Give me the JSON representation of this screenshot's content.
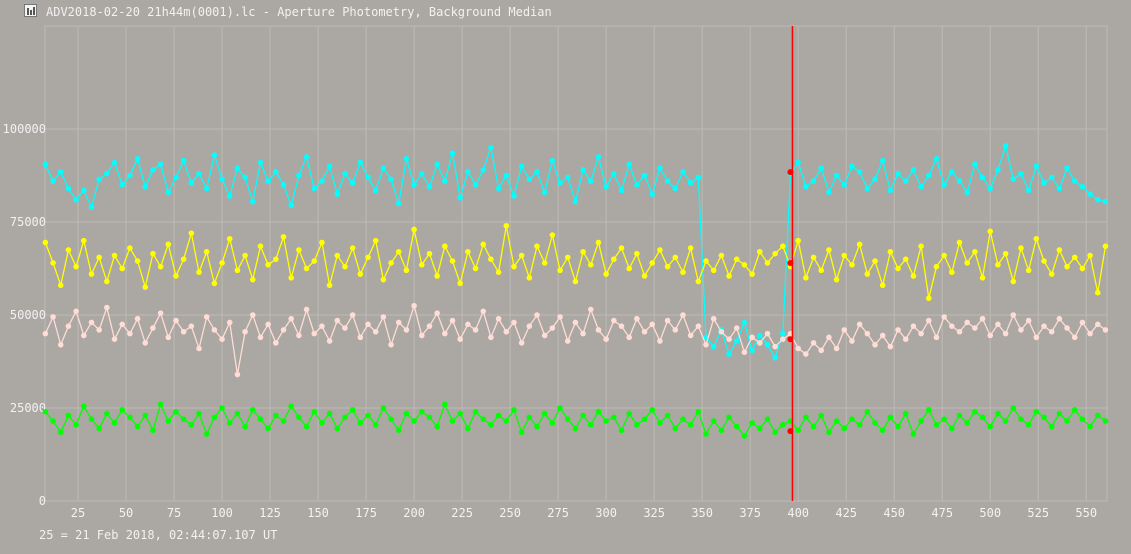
{
  "window": {
    "title": "ADV2018-02-20 21h44m(0001).lc - Aperture Photometry, Background Median",
    "icon": "light-curve-app-icon"
  },
  "footer": {
    "time_label": "25 = 21 Feb 2018, 02:44:07.107 UT"
  },
  "chart_data": {
    "type": "line",
    "title": "",
    "xlabel": "",
    "ylabel": "",
    "xlim": [
      7.8,
      560.8
    ],
    "ylim": [
      0,
      127700
    ],
    "grid": true,
    "x_ticks": [
      25,
      50,
      75,
      100,
      125,
      150,
      175,
      200,
      225,
      250,
      275,
      300,
      325,
      350,
      375,
      400,
      425,
      450,
      475,
      500,
      525,
      550
    ],
    "y_ticks": [
      0,
      25000,
      50000,
      75000,
      100000
    ],
    "x_start": 8,
    "x_step": 4,
    "current_frame": 397,
    "current_frame_color": "#ff0000",
    "series": [
      {
        "color": "#00ffff",
        "current_value": 88400,
        "values": [
          90500,
          86000,
          88500,
          84000,
          81000,
          83500,
          79000,
          86500,
          88000,
          91000,
          85000,
          87500,
          92000,
          84500,
          89000,
          90500,
          83000,
          87000,
          91500,
          85500,
          88000,
          84000,
          93000,
          86500,
          82000,
          89500,
          87000,
          80500,
          91000,
          86000,
          88500,
          85000,
          79500,
          87500,
          92500,
          84000,
          86000,
          90000,
          82500,
          88000,
          85500,
          91000,
          87000,
          83500,
          89500,
          86500,
          80000,
          92000,
          85000,
          88000,
          84500,
          90500,
          86000,
          93500,
          81500,
          88500,
          85000,
          89000,
          95000,
          84000,
          87500,
          82000,
          90000,
          86500,
          88500,
          83000,
          91500,
          85500,
          87000,
          80500,
          89000,
          86000,
          92500,
          84500,
          88000,
          83500,
          90500,
          85000,
          87500,
          82500,
          89500,
          86000,
          84000,
          88500,
          85500,
          87000,
          44000,
          41500,
          46000,
          39500,
          43000,
          48000,
          40500,
          44500,
          42000,
          38500,
          45000,
          88000,
          91000,
          84500,
          86000,
          89500,
          83000,
          87500,
          85000,
          90000,
          88500,
          84000,
          86500,
          91500,
          83500,
          88000,
          86000,
          89000,
          84500,
          87500,
          92000,
          85000,
          88500,
          86000,
          83000,
          90500,
          87000,
          84000,
          89000,
          95500,
          86500,
          88000,
          83500,
          90000,
          85500,
          87000,
          84000,
          89500,
          86000,
          84500,
          82500,
          81000,
          80500
        ]
      },
      {
        "color": "#ffff00",
        "current_value": 64000,
        "values": [
          69500,
          64000,
          58000,
          67500,
          63000,
          70000,
          61000,
          65500,
          59000,
          66000,
          62500,
          68000,
          64500,
          57500,
          66500,
          63000,
          69000,
          60500,
          65000,
          72000,
          61500,
          67000,
          58500,
          64000,
          70500,
          62000,
          66000,
          59500,
          68500,
          63500,
          65000,
          71000,
          60000,
          67500,
          62500,
          64500,
          69500,
          58000,
          66000,
          63000,
          68000,
          61000,
          65500,
          70000,
          59500,
          64000,
          67000,
          62000,
          73000,
          63500,
          66500,
          60500,
          68500,
          64500,
          58500,
          67000,
          62500,
          69000,
          65000,
          61500,
          74000,
          63000,
          66000,
          60000,
          68500,
          64000,
          71500,
          62000,
          65500,
          59000,
          67000,
          63500,
          69500,
          61000,
          65000,
          68000,
          62500,
          66500,
          60500,
          64000,
          67500,
          63000,
          65500,
          61500,
          68000,
          59000,
          64500,
          62000,
          66000,
          60500,
          65000,
          63500,
          61000,
          67000,
          64000,
          66500,
          68500,
          63000,
          70000,
          60000,
          65500,
          62000,
          67500,
          59500,
          66000,
          63500,
          69000,
          61000,
          64500,
          58000,
          67000,
          62500,
          65000,
          60500,
          68500,
          54500,
          63000,
          66000,
          61500,
          69500,
          64000,
          67000,
          60000,
          72500,
          63500,
          66500,
          59000,
          68000,
          62000,
          70500,
          64500,
          61000,
          67500,
          63000,
          65500,
          62500,
          66000,
          56000,
          68500
        ]
      },
      {
        "color": "#ffdcd6",
        "current_value": 43500,
        "values": [
          45000,
          49500,
          42000,
          47000,
          51000,
          44500,
          48000,
          46000,
          52000,
          43500,
          47500,
          45000,
          49000,
          42500,
          46500,
          50500,
          44000,
          48500,
          45500,
          47000,
          41000,
          49500,
          46000,
          43500,
          48000,
          34000,
          45500,
          50000,
          44000,
          47500,
          42500,
          46000,
          49000,
          44500,
          51500,
          45000,
          47000,
          43000,
          48500,
          46500,
          50000,
          44000,
          47500,
          45500,
          49500,
          42000,
          48000,
          46000,
          52500,
          44500,
          47000,
          50500,
          45000,
          48500,
          43500,
          47500,
          46000,
          51000,
          44000,
          49000,
          45500,
          48000,
          42500,
          47000,
          50000,
          44500,
          46500,
          49500,
          43000,
          48000,
          45000,
          51500,
          46000,
          43500,
          48500,
          47000,
          44000,
          49000,
          45500,
          47500,
          43000,
          48500,
          46000,
          50000,
          44500,
          47000,
          42000,
          49000,
          45500,
          43500,
          46500,
          40000,
          44000,
          42500,
          45000,
          41500,
          43500,
          45000,
          41000,
          39500,
          42500,
          40500,
          44000,
          41000,
          46000,
          43000,
          47500,
          45000,
          42000,
          44500,
          41500,
          46000,
          43500,
          47000,
          45000,
          48500,
          44000,
          49500,
          47000,
          45500,
          48000,
          46500,
          49000,
          44500,
          47500,
          45000,
          50000,
          46000,
          48500,
          44000,
          47000,
          45500,
          49000,
          46500,
          44000,
          48000,
          45000,
          47500,
          46000
        ]
      },
      {
        "color": "#00ff00",
        "current_value": 18800,
        "values": [
          24000,
          21500,
          18500,
          23000,
          20500,
          25500,
          22000,
          19500,
          23500,
          21000,
          24500,
          22500,
          20000,
          23000,
          19000,
          26000,
          21500,
          24000,
          22000,
          20500,
          23500,
          18000,
          22500,
          25000,
          21000,
          23500,
          20000,
          24500,
          22000,
          19500,
          23000,
          21500,
          25500,
          22500,
          20000,
          24000,
          21000,
          23500,
          19500,
          22500,
          24500,
          21000,
          23000,
          20500,
          25000,
          22000,
          19000,
          23500,
          21500,
          24000,
          22500,
          20000,
          26000,
          21500,
          23500,
          19500,
          24000,
          22000,
          20500,
          23000,
          21500,
          24500,
          18500,
          22500,
          20000,
          23500,
          21000,
          25000,
          22000,
          19500,
          23000,
          20500,
          24000,
          21500,
          22500,
          19000,
          23500,
          20500,
          22000,
          24500,
          21000,
          23000,
          19500,
          22000,
          20500,
          24000,
          18000,
          21500,
          19000,
          22500,
          20000,
          17500,
          21000,
          19500,
          22000,
          18500,
          20500,
          21500,
          19000,
          22500,
          20000,
          23000,
          18500,
          21500,
          19500,
          22000,
          20500,
          24000,
          21000,
          19000,
          22500,
          20000,
          23500,
          18000,
          21500,
          24500,
          20500,
          22000,
          19500,
          23000,
          21000,
          24000,
          22500,
          20000,
          23500,
          21500,
          25000,
          22000,
          20500,
          24000,
          22500,
          20000,
          23500,
          21500,
          24500,
          22000,
          20000,
          23000,
          21500
        ]
      }
    ]
  }
}
